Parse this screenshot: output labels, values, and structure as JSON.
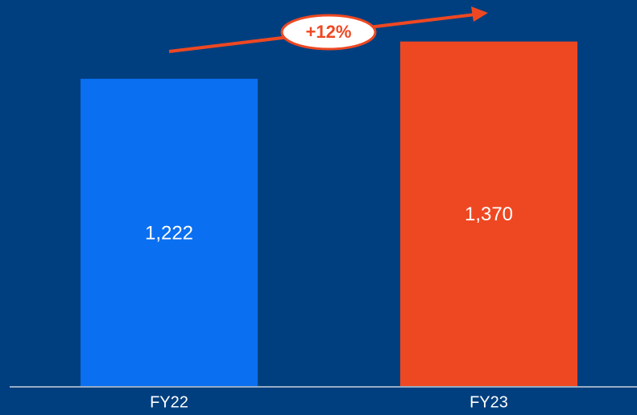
{
  "chart_data": {
    "type": "bar",
    "categories": [
      "FY22",
      "FY23"
    ],
    "values": [
      1222,
      1370
    ],
    "value_labels": [
      "1,222",
      "1,370"
    ],
    "colors": [
      "#0a6ff0",
      "#ee4822"
    ],
    "ylim": [
      0,
      1500
    ],
    "annotation": "+12%"
  }
}
